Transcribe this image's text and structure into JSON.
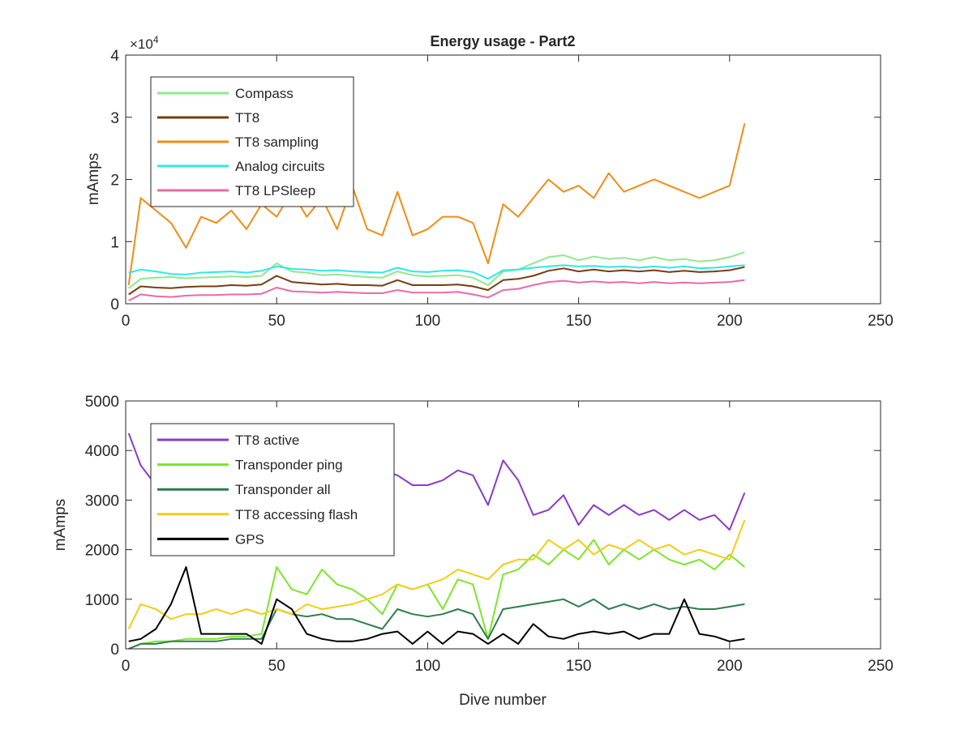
{
  "chart_data": [
    {
      "type": "line",
      "title": "Energy usage - Part2",
      "xlabel": "",
      "ylabel": "mAmps",
      "y_exponent": "×10^4",
      "y_exponent_text": "×10",
      "y_exponent_power": "4",
      "xlim": [
        0,
        250
      ],
      "ylim": [
        0,
        40000
      ],
      "xticks": [
        0,
        50,
        100,
        150,
        200,
        250
      ],
      "yticks": [
        0,
        10000,
        20000,
        30000,
        40000
      ],
      "ytick_labels": [
        "0",
        "1",
        "2",
        "3",
        "4"
      ],
      "grid": false,
      "legend_position": "top-left",
      "x": [
        1,
        5,
        10,
        15,
        20,
        25,
        30,
        35,
        40,
        45,
        50,
        55,
        60,
        65,
        70,
        75,
        80,
        85,
        90,
        95,
        100,
        105,
        110,
        115,
        120,
        125,
        130,
        135,
        140,
        145,
        150,
        155,
        160,
        165,
        170,
        175,
        180,
        185,
        190,
        195,
        200,
        205
      ],
      "series": [
        {
          "name": "Compass",
          "color": "#8fe88f",
          "values": [
            2500,
            4000,
            4200,
            4300,
            4100,
            4200,
            4300,
            4400,
            4300,
            4500,
            6500,
            5200,
            5000,
            4600,
            4700,
            4500,
            4300,
            4200,
            5200,
            4600,
            4400,
            4500,
            4600,
            4200,
            3000,
            5200,
            5500,
            6500,
            7500,
            7800,
            7000,
            7600,
            7200,
            7400,
            7000,
            7500,
            7000,
            7200,
            6800,
            7000,
            7500,
            8300
          ]
        },
        {
          "name": "TT8",
          "color": "#7a3b10",
          "values": [
            1500,
            2800,
            2600,
            2500,
            2700,
            2800,
            2800,
            3000,
            2900,
            3100,
            4500,
            3500,
            3300,
            3100,
            3200,
            3000,
            3000,
            2900,
            3800,
            3000,
            3000,
            3000,
            3100,
            2800,
            2200,
            3800,
            4000,
            4500,
            5300,
            5700,
            5200,
            5500,
            5200,
            5400,
            5200,
            5400,
            5100,
            5300,
            5100,
            5200,
            5400,
            5900
          ]
        },
        {
          "name": "TT8 sampling",
          "color": "#f08d14",
          "values": [
            3000,
            17000,
            15000,
            13000,
            9000,
            14000,
            13000,
            15000,
            12000,
            16000,
            14000,
            18000,
            14000,
            17000,
            12000,
            19000,
            12000,
            11000,
            18000,
            11000,
            12000,
            14000,
            14000,
            13000,
            6500,
            16000,
            14000,
            17000,
            20000,
            18000,
            19000,
            17000,
            21000,
            18000,
            19000,
            20000,
            19000,
            18000,
            17000,
            18000,
            19000,
            29000
          ]
        },
        {
          "name": "Analog circuits",
          "color": "#2fe8e8",
          "values": [
            5000,
            5500,
            5200,
            4800,
            4700,
            5000,
            5100,
            5200,
            5000,
            5300,
            6000,
            5600,
            5500,
            5300,
            5400,
            5200,
            5100,
            5000,
            5800,
            5200,
            5100,
            5300,
            5400,
            5100,
            4000,
            5400,
            5500,
            5800,
            6000,
            6200,
            6000,
            6100,
            5900,
            6000,
            5800,
            6000,
            5800,
            6000,
            5700,
            5800,
            6000,
            6200
          ]
        },
        {
          "name": "TT8 LPSleep",
          "color": "#e86aa8",
          "values": [
            500,
            1500,
            1200,
            1100,
            1300,
            1400,
            1400,
            1500,
            1500,
            1600,
            2600,
            2000,
            1900,
            1800,
            1900,
            1800,
            1700,
            1700,
            2200,
            1800,
            1800,
            1800,
            1900,
            1500,
            1000,
            2200,
            2400,
            3000,
            3500,
            3700,
            3400,
            3600,
            3400,
            3500,
            3300,
            3500,
            3300,
            3400,
            3300,
            3400,
            3500,
            3800
          ]
        }
      ]
    },
    {
      "type": "line",
      "title": "",
      "xlabel": "Dive number",
      "ylabel": "mAmps",
      "xlim": [
        0,
        250
      ],
      "ylim": [
        0,
        5000
      ],
      "xticks": [
        0,
        50,
        100,
        150,
        200,
        250
      ],
      "yticks": [
        0,
        1000,
        2000,
        3000,
        4000,
        5000
      ],
      "ytick_labels": [
        "0",
        "1000",
        "2000",
        "3000",
        "4000",
        "5000"
      ],
      "grid": false,
      "legend_position": "top-left",
      "x": [
        1,
        5,
        10,
        15,
        20,
        25,
        30,
        35,
        40,
        45,
        50,
        55,
        60,
        65,
        70,
        75,
        80,
        85,
        90,
        95,
        100,
        105,
        110,
        115,
        120,
        125,
        130,
        135,
        140,
        145,
        150,
        155,
        160,
        165,
        170,
        175,
        180,
        185,
        190,
        195,
        200,
        205
      ],
      "series": [
        {
          "name": "TT8 active",
          "color": "#8a3cc4",
          "values": [
            4350,
            3700,
            3300,
            3600,
            3400,
            3500,
            3600,
            3700,
            3500,
            3600,
            3400,
            3600,
            3500,
            3400,
            3500,
            3400,
            3500,
            3600,
            3500,
            3300,
            3300,
            3400,
            3600,
            3500,
            2900,
            3800,
            3400,
            2700,
            2800,
            3100,
            2500,
            2900,
            2700,
            2900,
            2700,
            2800,
            2600,
            2800,
            2600,
            2700,
            2400,
            3150
          ]
        },
        {
          "name": "Transponder ping",
          "color": "#7ce62a",
          "values": [
            0,
            100,
            150,
            150,
            200,
            200,
            200,
            250,
            250,
            300,
            1650,
            1200,
            1100,
            1600,
            1300,
            1200,
            1000,
            700,
            1300,
            1200,
            1300,
            800,
            1400,
            1300,
            200,
            1500,
            1600,
            1900,
            1700,
            2000,
            1800,
            2200,
            1700,
            2000,
            1800,
            2000,
            1800,
            1700,
            1800,
            1600,
            1900,
            1650
          ]
        },
        {
          "name": "Transponder all",
          "color": "#2e7d4a",
          "values": [
            0,
            100,
            100,
            150,
            150,
            150,
            150,
            200,
            200,
            200,
            800,
            700,
            650,
            700,
            600,
            600,
            500,
            400,
            800,
            700,
            650,
            700,
            800,
            700,
            200,
            800,
            850,
            900,
            950,
            1000,
            850,
            1000,
            800,
            900,
            800,
            900,
            800,
            850,
            800,
            800,
            850,
            900
          ]
        },
        {
          "name": "TT8 accessing flash",
          "color": "#f5cc14",
          "values": [
            400,
            900,
            800,
            600,
            700,
            700,
            800,
            700,
            800,
            700,
            800,
            700,
            900,
            800,
            850,
            900,
            1000,
            1100,
            1300,
            1200,
            1300,
            1400,
            1600,
            1500,
            1400,
            1700,
            1800,
            1800,
            2200,
            2000,
            2200,
            1900,
            2100,
            2000,
            2200,
            2000,
            2100,
            1900,
            2000,
            1900,
            1800,
            2600
          ]
        },
        {
          "name": "GPS",
          "color": "#000000",
          "values": [
            150,
            200,
            400,
            900,
            1650,
            300,
            300,
            300,
            300,
            100,
            1000,
            800,
            300,
            200,
            150,
            150,
            200,
            300,
            350,
            100,
            350,
            100,
            350,
            300,
            100,
            300,
            100,
            500,
            250,
            200,
            300,
            350,
            300,
            350,
            200,
            300,
            300,
            1000,
            300,
            250,
            150,
            200
          ]
        }
      ]
    }
  ]
}
